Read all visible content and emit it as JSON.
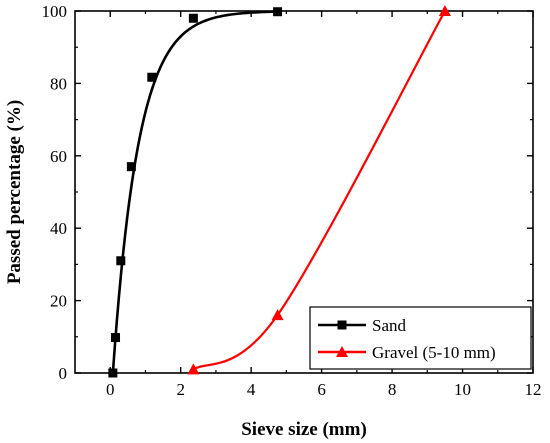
{
  "chart_data": {
    "type": "line",
    "xlabel": "Sieve size (mm)",
    "ylabel": "Passed percentage (%)",
    "xlim": [
      -1,
      12
    ],
    "ylim": [
      0,
      100
    ],
    "xticks": [
      0,
      2,
      4,
      6,
      8,
      10,
      12
    ],
    "yticks": [
      0,
      20,
      40,
      60,
      80,
      100
    ],
    "grid": false,
    "legend_position": "bottom-right",
    "series": [
      {
        "name": "Sand",
        "color": "#000000",
        "marker": "square",
        "x": [
          0.075,
          0.15,
          0.3,
          0.6,
          1.18,
          2.36,
          4.75
        ],
        "y": [
          0,
          9.8,
          31,
          57,
          81.7,
          98,
          99.8
        ]
      },
      {
        "name": "Gravel (5-10 mm)",
        "color": "#ff0000",
        "marker": "triangle",
        "x": [
          2.36,
          4.75,
          9.5
        ],
        "y": [
          1,
          16,
          100
        ]
      }
    ]
  }
}
